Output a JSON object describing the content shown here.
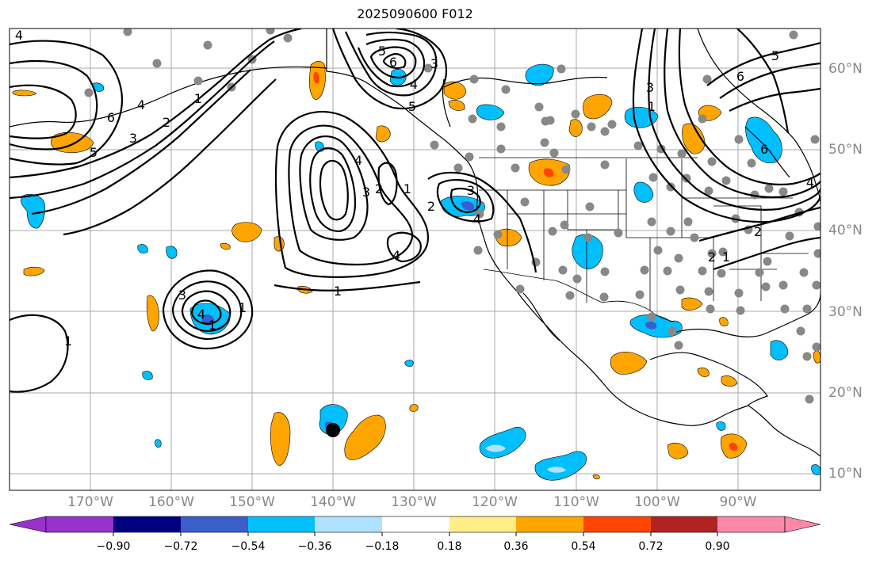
{
  "title": "2025090600 F012",
  "lon_labels": [
    "170°W",
    "160°W",
    "150°W",
    "140°W",
    "130°W",
    "120°W",
    "110°W",
    "100°W",
    "90°W"
  ],
  "lat_labels": [
    "60°N",
    "50°N",
    "40°N",
    "30°N",
    "20°N",
    "10°N"
  ],
  "colorbar": {
    "tick_labels": [
      "−0.90",
      "−0.72",
      "−0.54",
      "−0.36",
      "−0.18",
      "0.18",
      "0.36",
      "0.54",
      "0.72",
      "0.90"
    ],
    "colors": [
      "#9932cc",
      "#000080",
      "#3a5fcd",
      "#00bfff",
      "#b0e2ff",
      "#ffffff",
      "#ffee88",
      "#ffa500",
      "#ff4500",
      "#b22222",
      "#ff88aa"
    ]
  },
  "contour_labels": [
    "4",
    "6",
    "5",
    "5",
    "3",
    "4",
    "1",
    "2",
    "3",
    "4",
    "6",
    "5",
    "4",
    "1",
    "3",
    "1",
    "4",
    "2",
    "3",
    "4",
    "2",
    "3",
    "4",
    "1",
    "1",
    "5",
    "6",
    "6",
    "3",
    "4",
    "2",
    "1",
    "1",
    "2",
    "1"
  ],
  "colors": {
    "positive": "#ffa500",
    "strong_positive": "#ff4500",
    "negative": "#00bfff",
    "strong_negative": "#3a5fcd",
    "station_dot": "#888888",
    "center_marker": "#000000"
  }
}
